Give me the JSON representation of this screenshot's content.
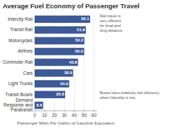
{
  "chart_data": {
    "type": "bar",
    "orientation": "horizontal",
    "title": "Average Fuel Economy of Passenger Travel",
    "categories": [
      "Demand\nResponse and\nParatransit",
      "Transit Buses",
      "Light Trucks",
      "Cars",
      "Commuter Rail",
      "Airlines",
      "Motorcycles",
      "Transit Rail",
      "Intercity Rail"
    ],
    "values": [
      8.6,
      30.8,
      34.9,
      38.9,
      43.8,
      50.0,
      50.2,
      51.8,
      56.1
    ],
    "value_labels": [
      "8.6",
      "30.8",
      "34.9",
      "38.9",
      "43.8",
      "50.0",
      "50.2",
      "51.8",
      "56.1"
    ],
    "data_labels": true,
    "color": "#3d5a96",
    "xlabel": "Passenger Miles Per Gallon of Gasoline Equivalent",
    "xlim": [
      0,
      63
    ],
    "xticks": [
      0,
      10,
      20,
      30,
      40,
      50,
      60
    ],
    "grid": true,
    "annotations": [
      "Rail travel is\nvery efficient\nfor local and\nlong-distance",
      "Buses have relatively low efficiency\nwhen ridership is low"
    ]
  }
}
